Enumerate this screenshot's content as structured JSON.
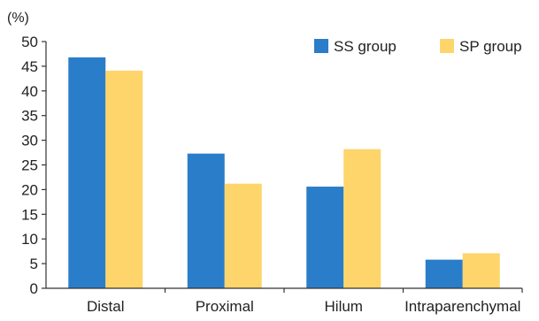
{
  "chart_data": {
    "type": "bar",
    "title": "",
    "xlabel": "",
    "ylabel": "(%)",
    "ylim": [
      0,
      50
    ],
    "yticks": [
      0,
      5,
      10,
      15,
      20,
      25,
      30,
      35,
      40,
      45,
      50
    ],
    "grid": false,
    "legend_position": "top-right",
    "categories": [
      "Distal",
      "Proximal",
      "Hilum",
      "Intraparenchymal"
    ],
    "series": [
      {
        "name": "SS group",
        "color": "#2a7dc9",
        "values": [
          46.8,
          27.3,
          20.6,
          5.8
        ]
      },
      {
        "name": "SP group",
        "color": "#fdd56a",
        "values": [
          44.1,
          21.2,
          28.2,
          7.1
        ]
      }
    ]
  }
}
